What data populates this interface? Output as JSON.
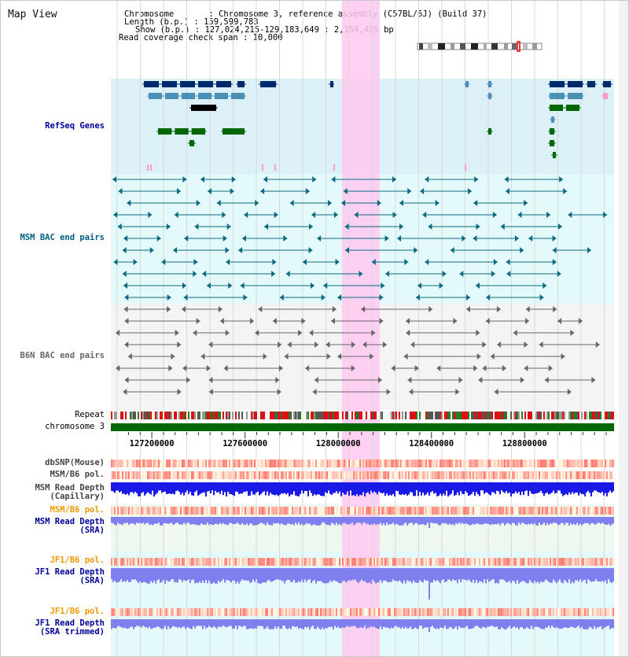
{
  "app": {
    "title": "Map View"
  },
  "header": {
    "chromosome": "Chromosome       : Chromosome 3, reference assembly (C57BL/6J) (Build 37)",
    "length": "Length (b.p.) : 159,599,783",
    "show": "Show (b.p.) : 127,024,215-129,183,649 : 2,159,435 bp",
    "coverage": "Read coverage check span : 10,000"
  },
  "tracks": {
    "refseq": "RefSeq Genes",
    "msm_bac": "MSM BAC end pairs",
    "b6n_bac": "B6N BAC end pairs",
    "repeat": "Repeat",
    "chromosome": "chromosome 3",
    "dbsnp": "dbSNP(Mouse)",
    "msm_b6_pol_1": "MSM/B6 pol.",
    "msm_depth_cap": "MSM Read Depth\n(Capillary)",
    "msm_b6_pol_2": "MSM/B6 pol.",
    "msm_depth_sra": "MSM Read Depth\n(SRA)",
    "jf1_b6_pol_1": "JF1/B6 pol.",
    "jf1_depth_sra": "JF1 Read Depth\n(SRA)",
    "jf1_b6_pol_2": "JF1/B6 pol.",
    "jf1_depth_trim": "JF1 Read Depth\n(SRA trimmed)"
  },
  "axis": {
    "ticks": [
      {
        "value": 127200000,
        "label": "127200000"
      },
      {
        "value": 127600000,
        "label": "127600000"
      },
      {
        "value": 128000000,
        "label": "128000000"
      },
      {
        "value": 128400000,
        "label": "128400000"
      },
      {
        "value": 128800000,
        "label": "128800000"
      }
    ],
    "start": 127024215,
    "end": 129183649,
    "highlight": [
      128016000,
      128178000
    ]
  },
  "colors": {
    "refseq_bg": "#dcf0f8",
    "msm_bg": "#e4fafa",
    "b6n_bg": "#f4f4f4",
    "highlight": "#ffc8f0",
    "gene_navy": "#002a6b",
    "gene_teal": "#4a8fb5",
    "gene_green": "#006600",
    "msm_line": "#0a6a80",
    "b6n_line": "#666666",
    "chromosome": "#006600",
    "depth_blue": "#1a1ae6",
    "depth_light": "#7f7ff0",
    "label_blue": "#000099",
    "label_teal": "#006080",
    "label_orange": "#ee9900"
  }
}
